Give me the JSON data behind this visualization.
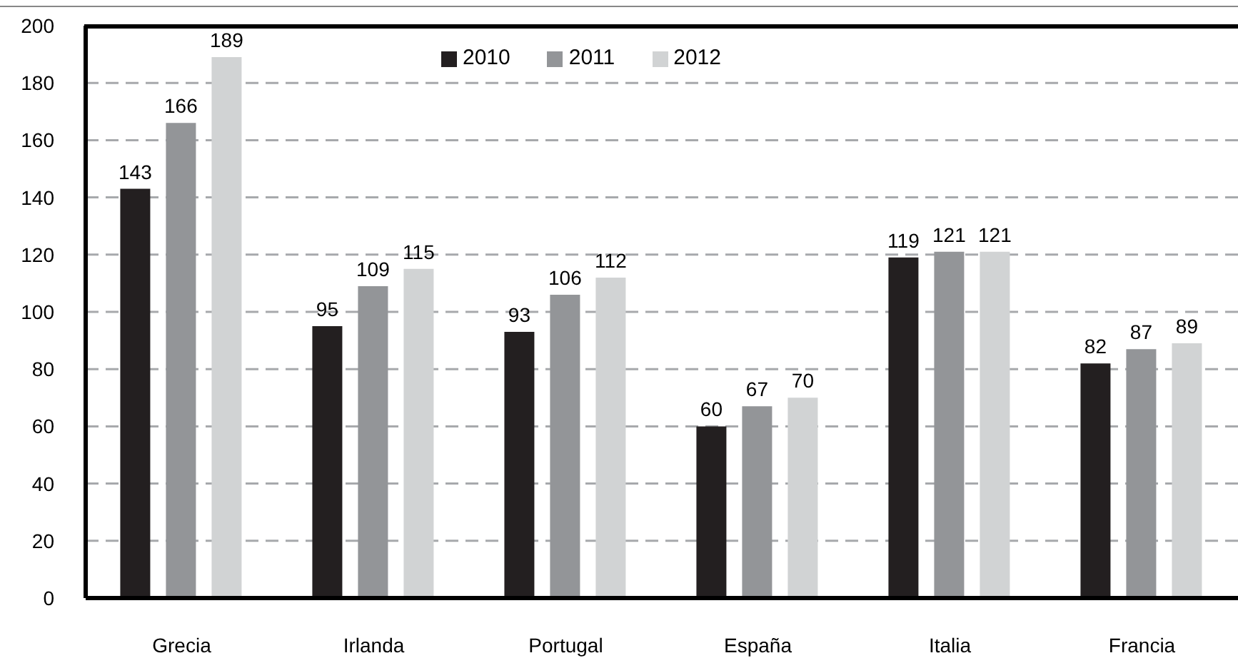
{
  "chart_data": {
    "type": "bar",
    "categories": [
      "Grecia",
      "Irlanda",
      "Portugal",
      "España",
      "Italia",
      "Francia"
    ],
    "series": [
      {
        "name": "2010",
        "color": "#231f20",
        "values": [
          143,
          95,
          93,
          60,
          119,
          82
        ]
      },
      {
        "name": "2011",
        "color": "#939598",
        "values": [
          166,
          109,
          106,
          67,
          121,
          87
        ]
      },
      {
        "name": "2012",
        "color": "#d1d3d4",
        "values": [
          189,
          115,
          112,
          70,
          121,
          89
        ]
      }
    ],
    "ylim": [
      0,
      200
    ],
    "yticks": [
      0,
      20,
      40,
      60,
      80,
      100,
      120,
      140,
      160,
      180,
      200
    ],
    "grid": "y",
    "legend": "top",
    "data_labels": true
  }
}
